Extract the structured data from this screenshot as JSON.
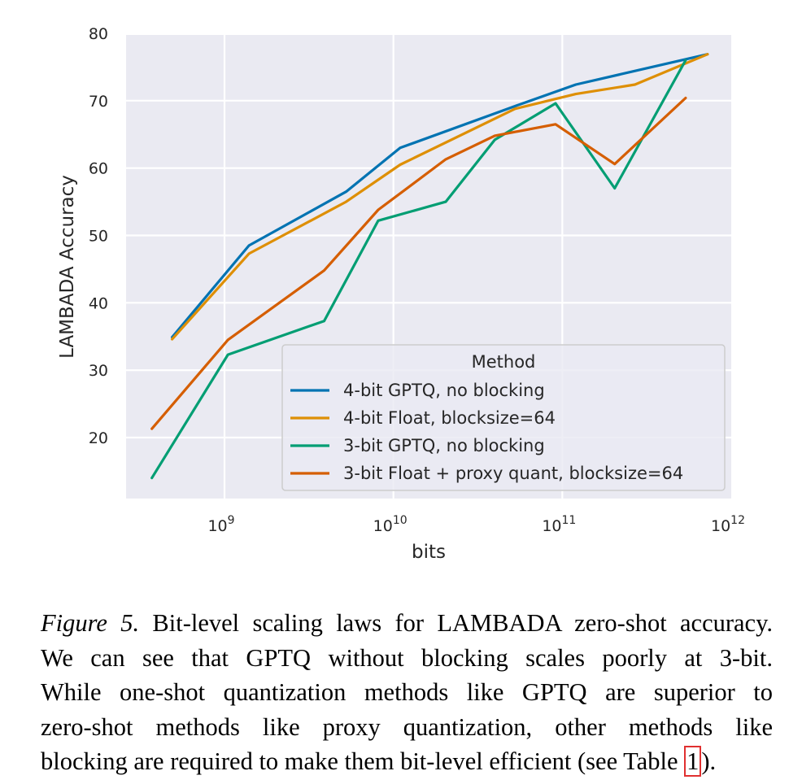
{
  "chart_data": {
    "type": "line",
    "title": "",
    "xlabel": "bits",
    "ylabel": "LAMBADA Accuracy",
    "xscale": "log",
    "xlim_log10": [
      8.4,
      12.0
    ],
    "ylim": [
      12,
      80
    ],
    "x_ticks": [
      {
        "log10": 9,
        "base": "10",
        "exp": "9"
      },
      {
        "log10": 10,
        "base": "10",
        "exp": "10"
      },
      {
        "log10": 11,
        "base": "10",
        "exp": "11"
      },
      {
        "log10": 12,
        "base": "10",
        "exp": "12"
      }
    ],
    "y_ticks": [
      20,
      30,
      40,
      50,
      60,
      70,
      80
    ],
    "grid": true,
    "legend": {
      "title": "Method",
      "placement": "lower-right"
    },
    "series": [
      {
        "name": "4-bit GPTQ, no blocking",
        "color": "#0173b2",
        "x_log10": [
          8.69,
          9.145,
          9.72,
          10.04,
          10.72,
          11.08,
          11.86
        ],
        "values": [
          34.9,
          48.5,
          56.5,
          63.0,
          69.2,
          72.4,
          76.9
        ]
      },
      {
        "name": "4-bit Float, blocksize=64",
        "color": "#de8f05",
        "x_log10": [
          8.69,
          9.145,
          9.72,
          10.04,
          10.72,
          11.08,
          11.43,
          11.86
        ],
        "values": [
          34.6,
          47.3,
          55.0,
          60.5,
          68.8,
          71.0,
          72.4,
          76.9
        ]
      },
      {
        "name": "3-bit GPTQ, no blocking",
        "color": "#029e73",
        "x_log10": [
          8.57,
          9.02,
          9.59,
          9.91,
          10.31,
          10.6,
          10.96,
          11.31,
          11.73
        ],
        "values": [
          14.0,
          32.3,
          37.3,
          52.2,
          55.0,
          64.2,
          69.6,
          57.0,
          76.0
        ]
      },
      {
        "name": "3-bit Float + proxy quant, blocksize=64",
        "color": "#d55e00",
        "x_log10": [
          8.57,
          9.02,
          9.59,
          9.91,
          10.31,
          10.6,
          10.96,
          11.31,
          11.73
        ],
        "values": [
          21.3,
          34.5,
          44.8,
          53.8,
          61.3,
          64.8,
          66.5,
          60.6,
          70.4
        ]
      }
    ]
  },
  "caption": {
    "figure_label": "Figure 5.",
    "line1_rest": " Bit-level scaling laws for LAMBADA zero-shot accuracy.",
    "line2": "We can see that GPTQ without blocking scales poorly at 3-bit.",
    "line3": "While one-shot quantization methods like GPTQ are superior to",
    "line4": "zero-shot methods like proxy quantization, other methods like",
    "line5_pre": "blocking are required to make them bit-level efficient (see Table ",
    "table_ref": "1",
    "line5_post": ")."
  }
}
